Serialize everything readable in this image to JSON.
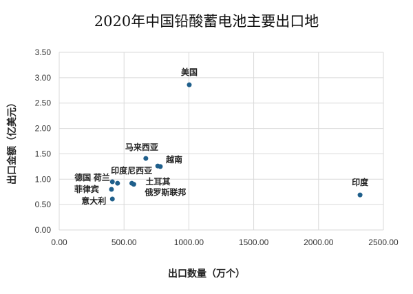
{
  "chart_data": {
    "type": "scatter",
    "title": "2020年中国铅酸蓄电池主要出口地",
    "xlabel": "出口数量（万个）",
    "ylabel": "出口金额（亿美元）",
    "xlim": [
      0,
      2500
    ],
    "ylim": [
      0,
      3.5
    ],
    "xticks": [
      "0.00",
      "500.00",
      "1000.00",
      "1500.00",
      "2000.00",
      "2500.00"
    ],
    "yticks": [
      "0.00",
      "0.50",
      "1.00",
      "1.50",
      "2.00",
      "2.50",
      "3.00",
      "3.50"
    ],
    "grid": true,
    "marker_color": "#1f5f8b",
    "points": [
      {
        "label": "美国",
        "x": 1003,
        "y": 2.86
      },
      {
        "label": "马来西亚",
        "x": 668,
        "y": 1.41
      },
      {
        "label": "越南",
        "x": 780,
        "y": 1.25
      },
      {
        "label": "印度尼西亚",
        "x": 760,
        "y": 1.26
      },
      {
        "label": "德国",
        "x": 410,
        "y": 0.95
      },
      {
        "label": "荷兰",
        "x": 450,
        "y": 0.92
      },
      {
        "label": "土耳其",
        "x": 560,
        "y": 0.92
      },
      {
        "label": "俄罗斯联邦",
        "x": 575,
        "y": 0.9
      },
      {
        "label": "菲律宾",
        "x": 403,
        "y": 0.8
      },
      {
        "label": "意大利",
        "x": 410,
        "y": 0.61
      },
      {
        "label": "印度",
        "x": 2320,
        "y": 0.69
      }
    ]
  }
}
